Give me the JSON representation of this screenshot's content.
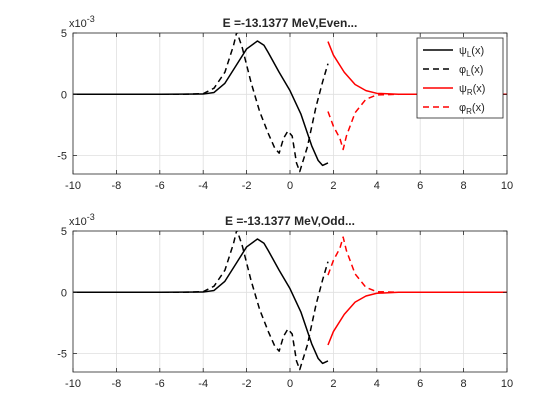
{
  "chart_data": [
    {
      "type": "line",
      "title": "E =-13.1377 MeV,Even...",
      "xlim": [
        -10,
        10
      ],
      "ylim": [
        -6.5,
        5
      ],
      "y_exponent_label": "x10^-3",
      "y_exponent_base": "x10",
      "y_exponent_power": "-3",
      "xticks": [
        "-10",
        "-8",
        "-6",
        "-4",
        "-2",
        "0",
        "2",
        "4",
        "6",
        "8",
        "10"
      ],
      "yticks": [
        "-5",
        "0",
        "5"
      ],
      "grid": true,
      "legend_position": "top-right",
      "legend": [
        {
          "base": "ψ",
          "sub": "L",
          "tail": "(x)",
          "color": "#000000",
          "dash": "solid"
        },
        {
          "base": "φ",
          "sub": "L",
          "tail": "(x)",
          "color": "#000000",
          "dash": "dashed"
        },
        {
          "base": "ψ",
          "sub": "R",
          "tail": "(x)",
          "color": "#ff0000",
          "dash": "solid"
        },
        {
          "base": "φ",
          "sub": "R",
          "tail": "(x)",
          "color": "#ff0000",
          "dash": "dashed"
        }
      ],
      "series": [
        {
          "color": "#000000",
          "dash": "solid",
          "points": [
            [
              -10,
              0
            ],
            [
              -6,
              0
            ],
            [
              -4,
              0.02
            ],
            [
              -3.5,
              0.15
            ],
            [
              -3,
              0.9
            ],
            [
              -2.5,
              2.3
            ],
            [
              -2,
              3.7
            ],
            [
              -1.5,
              4.35
            ],
            [
              -1.2,
              4.0
            ],
            [
              -1,
              3.4
            ],
            [
              -0.5,
              1.8
            ],
            [
              0,
              0.3
            ],
            [
              0.5,
              -1.6
            ],
            [
              1,
              -4.2
            ],
            [
              1.3,
              -5.4
            ],
            [
              1.5,
              -5.8
            ],
            [
              1.75,
              -5.6
            ]
          ]
        },
        {
          "color": "#000000",
          "dash": "dashed",
          "points": [
            [
              -10,
              0
            ],
            [
              -5,
              0
            ],
            [
              -4,
              0.05
            ],
            [
              -3.5,
              0.5
            ],
            [
              -3,
              1.8
            ],
            [
              -2.6,
              4.0
            ],
            [
              -2.45,
              5.1
            ],
            [
              -2.2,
              3.8
            ],
            [
              -1.8,
              1.0
            ],
            [
              -1.4,
              -1.4
            ],
            [
              -1,
              -3.2
            ],
            [
              -0.7,
              -4.4
            ],
            [
              -0.5,
              -4.8
            ],
            [
              -0.3,
              -3.6
            ],
            [
              -0.1,
              -3.0
            ],
            [
              0.1,
              -3.4
            ],
            [
              0.3,
              -5.6
            ],
            [
              0.45,
              -6.3
            ],
            [
              0.8,
              -4.3
            ],
            [
              1.2,
              -1.0
            ],
            [
              1.5,
              1.0
            ],
            [
              1.75,
              2.5
            ]
          ]
        },
        {
          "color": "#ff0000",
          "dash": "solid",
          "points": [
            [
              1.75,
              4.3
            ],
            [
              2,
              3.2
            ],
            [
              2.5,
              1.8
            ],
            [
              3,
              0.8
            ],
            [
              3.5,
              0.3
            ],
            [
              4,
              0.08
            ],
            [
              5,
              0
            ],
            [
              10,
              0
            ]
          ]
        },
        {
          "color": "#ff0000",
          "dash": "dashed",
          "points": [
            [
              1.75,
              -1.4
            ],
            [
              2,
              -2.6
            ],
            [
              2.3,
              -3.6
            ],
            [
              2.45,
              -4.5
            ],
            [
              2.6,
              -3.4
            ],
            [
              3,
              -1.5
            ],
            [
              3.5,
              -0.4
            ],
            [
              4,
              -0.05
            ],
            [
              5,
              0
            ],
            [
              10,
              0
            ]
          ]
        }
      ]
    },
    {
      "type": "line",
      "title": "E =-13.1377 MeV,Odd...",
      "xlim": [
        -10,
        10
      ],
      "ylim": [
        -6.5,
        5
      ],
      "y_exponent_label": "x10^-3",
      "y_exponent_base": "x10",
      "y_exponent_power": "-3",
      "xticks": [
        "-10",
        "-8",
        "-6",
        "-4",
        "-2",
        "0",
        "2",
        "4",
        "6",
        "8",
        "10"
      ],
      "yticks": [
        "-5",
        "0",
        "5"
      ],
      "grid": true,
      "series": [
        {
          "color": "#000000",
          "dash": "solid",
          "points": [
            [
              -10,
              0
            ],
            [
              -6,
              0
            ],
            [
              -4,
              0.02
            ],
            [
              -3.5,
              0.15
            ],
            [
              -3,
              0.9
            ],
            [
              -2.5,
              2.3
            ],
            [
              -2,
              3.7
            ],
            [
              -1.5,
              4.35
            ],
            [
              -1.2,
              4.0
            ],
            [
              -1,
              3.4
            ],
            [
              -0.5,
              1.8
            ],
            [
              0,
              0.3
            ],
            [
              0.5,
              -1.6
            ],
            [
              1,
              -4.2
            ],
            [
              1.3,
              -5.4
            ],
            [
              1.5,
              -5.8
            ],
            [
              1.75,
              -5.6
            ]
          ]
        },
        {
          "color": "#000000",
          "dash": "dashed",
          "points": [
            [
              -10,
              0
            ],
            [
              -5,
              0
            ],
            [
              -4,
              0.05
            ],
            [
              -3.5,
              0.5
            ],
            [
              -3,
              1.8
            ],
            [
              -2.6,
              4.0
            ],
            [
              -2.45,
              5.1
            ],
            [
              -2.2,
              3.8
            ],
            [
              -1.8,
              1.0
            ],
            [
              -1.4,
              -1.4
            ],
            [
              -1,
              -3.2
            ],
            [
              -0.7,
              -4.4
            ],
            [
              -0.5,
              -4.8
            ],
            [
              -0.3,
              -3.6
            ],
            [
              -0.1,
              -3.0
            ],
            [
              0.1,
              -3.4
            ],
            [
              0.3,
              -5.6
            ],
            [
              0.45,
              -6.3
            ],
            [
              0.8,
              -4.3
            ],
            [
              1.2,
              -1.0
            ],
            [
              1.5,
              1.0
            ],
            [
              1.75,
              2.5
            ]
          ]
        },
        {
          "color": "#ff0000",
          "dash": "solid",
          "points": [
            [
              1.75,
              -4.3
            ],
            [
              2,
              -3.2
            ],
            [
              2.5,
              -1.8
            ],
            [
              3,
              -0.8
            ],
            [
              3.5,
              -0.3
            ],
            [
              4,
              -0.08
            ],
            [
              5,
              0
            ],
            [
              10,
              0
            ]
          ]
        },
        {
          "color": "#ff0000",
          "dash": "dashed",
          "points": [
            [
              1.75,
              1.4
            ],
            [
              2,
              2.6
            ],
            [
              2.3,
              3.6
            ],
            [
              2.45,
              4.5
            ],
            [
              2.6,
              3.4
            ],
            [
              3,
              1.5
            ],
            [
              3.5,
              0.4
            ],
            [
              4,
              0.05
            ],
            [
              5,
              0
            ],
            [
              10,
              0
            ]
          ]
        }
      ]
    }
  ]
}
